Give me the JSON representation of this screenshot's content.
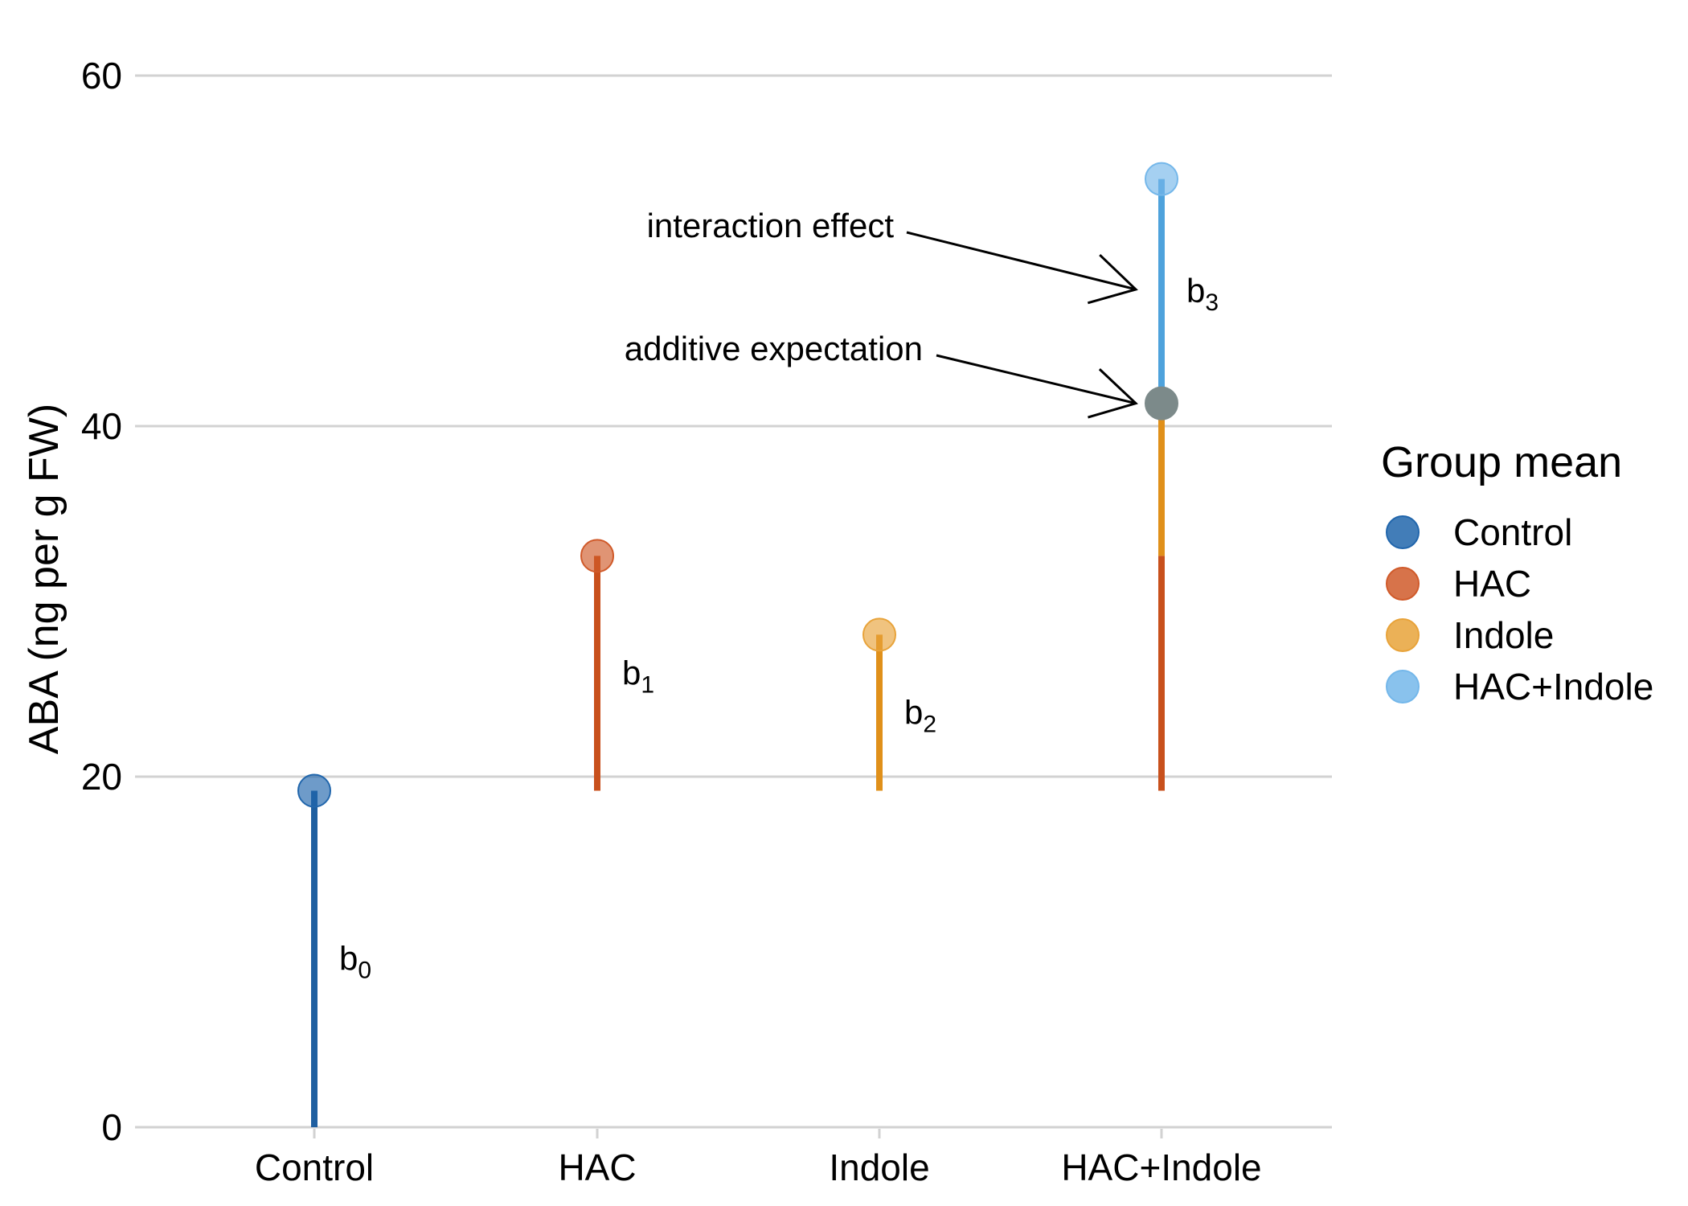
{
  "chart_data": {
    "type": "lollipop",
    "title": "",
    "xlabel": "",
    "ylabel": "ABA (ng per g FW)",
    "ylim": [
      0,
      60
    ],
    "yticks": [
      0,
      20,
      40,
      60
    ],
    "grid": "horizontal",
    "categories": [
      "Control",
      "HAC",
      "Indole",
      "HAC+Indole"
    ],
    "group_means": [
      {
        "group": "Control",
        "value": 19.2,
        "color": "#2166ac"
      },
      {
        "group": "HAC",
        "value": 32.6,
        "color": "#d05a2a"
      },
      {
        "group": "Indole",
        "value": 28.1,
        "color": "#e8a33a"
      },
      {
        "group": "HAC+Indole",
        "value": 54.1,
        "color": "#74b7ea"
      }
    ],
    "additive_expectation": {
      "value": 41.3,
      "color": "#7c8a8a"
    },
    "segments": [
      {
        "category": "Control",
        "from": 0,
        "to": 19.2,
        "color": "#1f5fa0",
        "label": "b",
        "sub": "0"
      },
      {
        "category": "HAC",
        "from": 19.2,
        "to": 32.6,
        "color": "#c8501c",
        "label": "b",
        "sub": "1"
      },
      {
        "category": "Indole",
        "from": 19.2,
        "to": 28.1,
        "color": "#e0901a",
        "label": "b",
        "sub": "2"
      },
      {
        "category": "HAC+Indole",
        "from": 19.2,
        "to": 32.6,
        "color": "#c8501c"
      },
      {
        "category": "HAC+Indole",
        "from": 32.6,
        "to": 41.3,
        "color": "#e0901a"
      },
      {
        "category": "HAC+Indole",
        "from": 41.3,
        "to": 54.1,
        "color": "#4ea2dc",
        "label": "b",
        "sub": "3"
      }
    ],
    "annotations": [
      {
        "text": "interaction effect",
        "arrow_to_value": 47.8
      },
      {
        "text": "additive expectation",
        "arrow_to_value": 41.3
      }
    ],
    "legend": {
      "title": "Group mean",
      "position": "right",
      "items": [
        {
          "label": "Control",
          "color": "#2166ac"
        },
        {
          "label": "HAC",
          "color": "#d05a2a"
        },
        {
          "label": "Indole",
          "color": "#e8a33a"
        },
        {
          "label": "HAC+Indole",
          "color": "#74b7ea"
        }
      ]
    }
  }
}
